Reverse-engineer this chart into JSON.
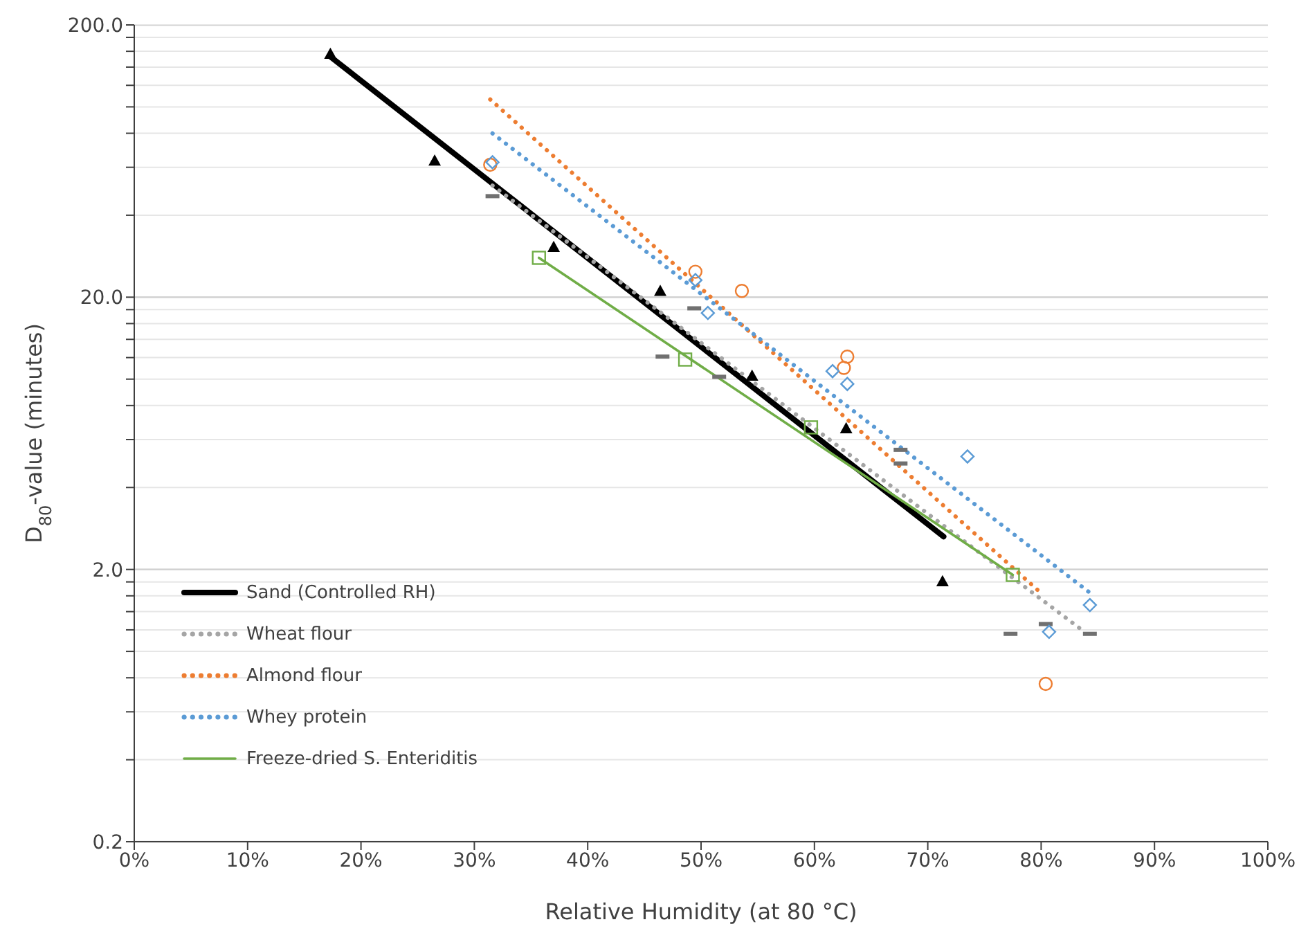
{
  "chart_data": {
    "type": "scatter",
    "xlabel": "Relative Humidity (at 80 °C)",
    "ylabel": "D$_{80}$-value (minutes)",
    "log": "y",
    "grid": "y",
    "legend": "bottom left",
    "xlim": [
      0,
      100
    ],
    "xticks": [
      {
        "value": 0,
        "label": "0%"
      },
      {
        "value": 10,
        "label": "10%"
      },
      {
        "value": 20,
        "label": "20%"
      },
      {
        "value": 30,
        "label": "30%"
      },
      {
        "value": 40,
        "label": "40%"
      },
      {
        "value": 50,
        "label": "50%"
      },
      {
        "value": 60,
        "label": "60%"
      },
      {
        "value": 70,
        "label": "70%"
      },
      {
        "value": 80,
        "label": "80%"
      },
      {
        "value": 90,
        "label": "90%"
      },
      {
        "value": 100,
        "label": "100%"
      }
    ],
    "ylim": [
      0.2,
      200
    ],
    "yticks": [
      {
        "value": 0.2,
        "label": "0.2"
      },
      {
        "value": 0.4,
        "label": null
      },
      {
        "value": 0.6,
        "label": null
      },
      {
        "value": 0.8,
        "label": null
      },
      {
        "value": 1,
        "label": null
      },
      {
        "value": 1.2,
        "label": null
      },
      {
        "value": 1.4,
        "label": null
      },
      {
        "value": 1.6,
        "label": null
      },
      {
        "value": 1.8,
        "label": null
      },
      {
        "value": 2,
        "label": "2.0"
      },
      {
        "value": 4,
        "label": null
      },
      {
        "value": 6,
        "label": null
      },
      {
        "value": 8,
        "label": null
      },
      {
        "value": 10,
        "label": null
      },
      {
        "value": 12,
        "label": null
      },
      {
        "value": 14,
        "label": null
      },
      {
        "value": 16,
        "label": null
      },
      {
        "value": 18,
        "label": null
      },
      {
        "value": 20,
        "label": "20.0"
      },
      {
        "value": 40,
        "label": null
      },
      {
        "value": 60,
        "label": null
      },
      {
        "value": 80,
        "label": null
      },
      {
        "value": 100,
        "label": null
      },
      {
        "value": 120,
        "label": null
      },
      {
        "value": 140,
        "label": null
      },
      {
        "value": 160,
        "label": null
      },
      {
        "value": 180,
        "label": null
      },
      {
        "value": 200,
        "label": "200.0"
      }
    ],
    "series": [
      {
        "name": "Sand (Controlled RH)",
        "type": "line",
        "line_style": "solid",
        "marker": "none",
        "color": "#000000",
        "x": [
          17.2,
          71.4
        ],
        "values": [
          154,
          2.64
        ]
      },
      {
        "name": "Wheat flour",
        "type": "line",
        "line_style": "dotted",
        "marker": "none",
        "color": "#a5a5a5",
        "x": [
          31.6,
          83.7
        ],
        "values": [
          51.4,
          1.19
        ]
      },
      {
        "name": "Almond flour",
        "type": "line",
        "line_style": "dotted",
        "marker": "none",
        "color": "#ed7d31",
        "x": [
          31.4,
          79.7
        ],
        "values": [
          106.5,
          1.68
        ]
      },
      {
        "name": "Whey protein",
        "type": "line",
        "line_style": "dotted",
        "marker": "none",
        "color": "#5b9bd5",
        "x": [
          31.6,
          84.4
        ],
        "values": [
          79.9,
          1.63
        ]
      },
      {
        "name": "Freeze-dried S. Enteriditis",
        "type": "line",
        "line_style": "solid",
        "marker": "none",
        "color": "#70ad47",
        "x": [
          35.7,
          77.5
        ],
        "values": [
          27.9,
          1.91
        ]
      },
      {
        "marker": "triangle",
        "color": "#000000",
        "x": [
          17.3,
          26.5,
          37.0,
          46.4,
          54.5,
          62.8,
          71.3
        ],
        "values": [
          156.7,
          63.5,
          30.6,
          21.1,
          10.3,
          6.6,
          1.81
        ]
      },
      {
        "color": "#707070",
        "x": [
          31.6,
          46.6,
          49.4,
          51.6,
          67.6,
          67.6,
          77.3,
          80.4,
          84.3
        ],
        "values": [
          47,
          12.1,
          18.2,
          10.2,
          5.5,
          4.9,
          1.16,
          1.26,
          1.16
        ]
      },
      {
        "marker": "circle",
        "color": "#ed7d31",
        "x": [
          31.4,
          49.5,
          53.6,
          62.6,
          62.9,
          80.4
        ],
        "values": [
          61.3,
          24.8,
          21.1,
          11.0,
          12.1,
          0.76
        ]
      },
      {
        "marker": "diamond",
        "color": "#5b9bd5",
        "x": [
          31.6,
          49.5,
          50.6,
          61.6,
          62.9,
          73.5,
          80.7,
          84.3
        ],
        "values": [
          62.6,
          23.1,
          17.5,
          10.7,
          9.6,
          5.2,
          1.18,
          1.48
        ]
      },
      {
        "marker": "square",
        "color": "#70ad47",
        "x": [
          35.7,
          48.6,
          59.7,
          77.5
        ],
        "values": [
          27.9,
          11.8,
          6.65,
          1.91
        ]
      }
    ]
  }
}
